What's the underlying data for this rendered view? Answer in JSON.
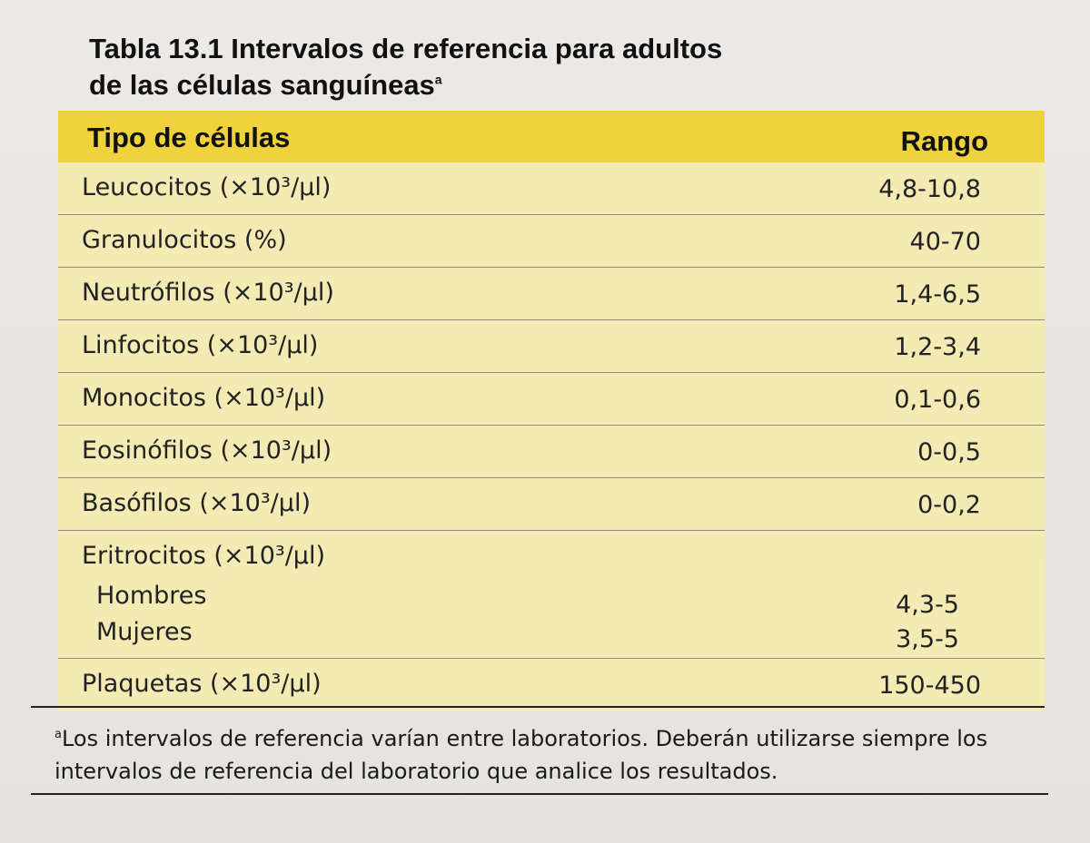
{
  "title": {
    "line1": "Tabla 13.1  Intervalos de referencia para adultos",
    "line2": "de las células sanguíneas",
    "marker": "a"
  },
  "table": {
    "headers": {
      "type": "Tipo de células",
      "range": "Rango"
    },
    "rows": [
      {
        "label": "Leucocitos (×10³/µl)",
        "range": "4,8-10,8"
      },
      {
        "label": "Granulocitos (%)",
        "range": "40-70"
      },
      {
        "label": "Neutrófilos (×10³/µl)",
        "range": "1,4-6,5"
      },
      {
        "label": "Linfocitos (×10³/µl)",
        "range": "1,2-3,4"
      },
      {
        "label": "Monocitos (×10³/µl)",
        "range": "0,1-0,6"
      },
      {
        "label": "Eosinófilos (×10³/µl)",
        "range": "0-0,5"
      },
      {
        "label": "Basófilos (×10³/µl)",
        "range": "0-0,2"
      }
    ],
    "eritrocitos": {
      "label": "Eritrocitos (×10³/µl)",
      "men_label": "Hombres",
      "men_range": "4,3-5",
      "women_label": "Mujeres",
      "women_range": "3,5-5"
    },
    "plaquetas": {
      "label": "Plaquetas (×10³/µl)",
      "range": "150-450"
    }
  },
  "footnote": {
    "marker": "a",
    "text": "Los intervalos de referencia varían entre laboratorios. Deberán utilizarse siempre los intervalos de referencia del laboratorio que analice los resultados."
  },
  "colors": {
    "header_bg": "#f0d23c",
    "row_bg": "#f4ebb4"
  }
}
